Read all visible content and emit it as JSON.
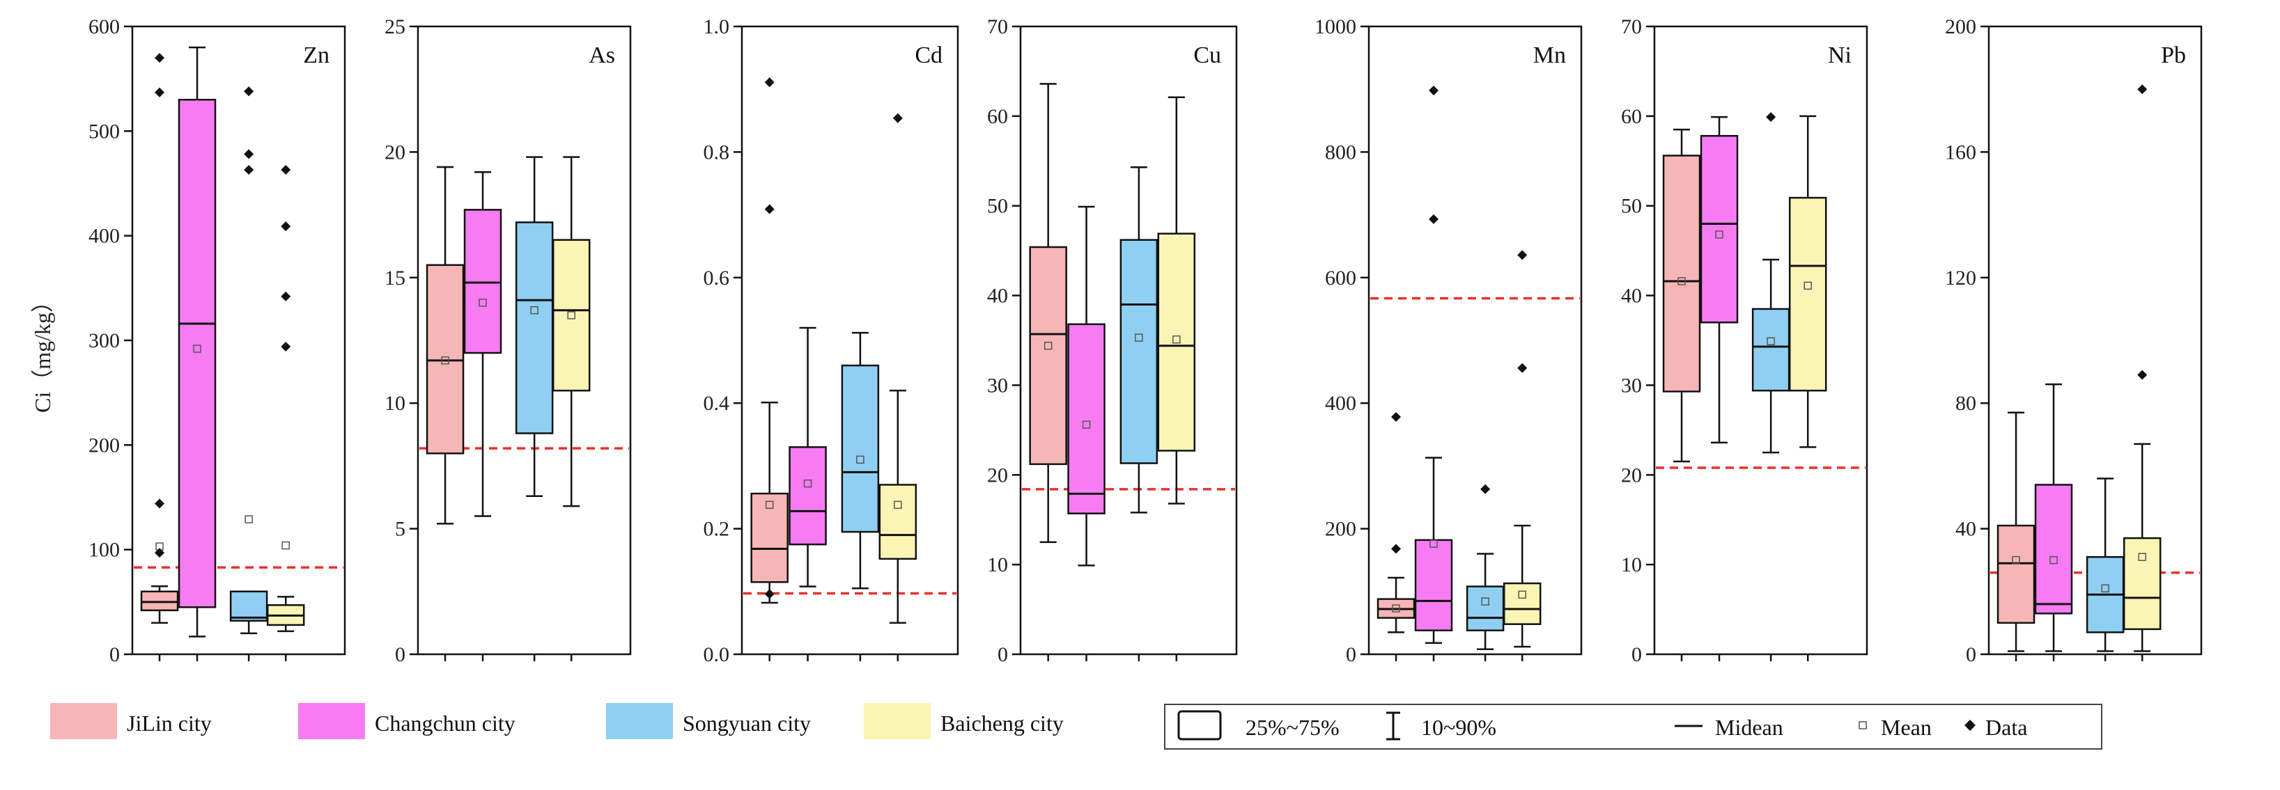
{
  "ylabel": "Ci（mg/kg）",
  "colors": {
    "JiLin city": "#f7b6b6",
    "Changchun city": "#f77cf3",
    "Songyuan city": "#8fd0f2",
    "Baicheng city": "#fbf5b5",
    "reference_line": "#e8322b"
  },
  "legend": {
    "cities": [
      "JiLin city",
      "Changchun city",
      "Songyuan city",
      "Baicheng city"
    ],
    "box_label": "25%~75%",
    "whisker_label": "10~90%",
    "median_label": "Midean",
    "mean_label": "Mean",
    "data_label": "Data"
  },
  "chart_data": [
    {
      "type": "box",
      "title": "Zn",
      "ylim": [
        0,
        600
      ],
      "ticks": [
        0,
        100,
        200,
        300,
        400,
        500,
        600
      ],
      "reference_line": 83,
      "boxes": [
        {
          "city": "JiLin city",
          "q1": 42,
          "median": 50,
          "q3": 60,
          "low": 30,
          "high": 65,
          "mean": 103,
          "outliers": [
            570,
            537,
            144,
            97
          ]
        },
        {
          "city": "Changchun city",
          "q1": 45,
          "median": 316,
          "q3": 530,
          "low": 17,
          "high": 580,
          "mean": 292,
          "outliers": []
        },
        {
          "city": "Songyuan city",
          "q1": 32,
          "median": 35,
          "q3": 60,
          "low": 20,
          "high": 60,
          "mean": 129,
          "outliers": [
            538,
            478,
            463
          ]
        },
        {
          "city": "Baicheng city",
          "q1": 28,
          "median": 37,
          "q3": 47,
          "low": 22,
          "high": 55,
          "mean": 104,
          "outliers": [
            463,
            409,
            342,
            294
          ]
        }
      ]
    },
    {
      "type": "box",
      "title": "As",
      "ylim": [
        0,
        25
      ],
      "ticks": [
        0,
        5,
        10,
        15,
        20,
        25
      ],
      "reference_line": 8.2,
      "boxes": [
        {
          "city": "JiLin city",
          "q1": 8.0,
          "median": 11.7,
          "q3": 15.5,
          "low": 5.2,
          "high": 19.4,
          "mean": 11.7,
          "outliers": []
        },
        {
          "city": "Changchun city",
          "q1": 12.0,
          "median": 14.8,
          "q3": 17.7,
          "low": 5.5,
          "high": 19.2,
          "mean": 14.0,
          "outliers": []
        },
        {
          "city": "Songyuan city",
          "q1": 8.8,
          "median": 14.1,
          "q3": 17.2,
          "low": 6.3,
          "high": 19.8,
          "mean": 13.7,
          "outliers": []
        },
        {
          "city": "Baicheng city",
          "q1": 10.5,
          "median": 13.7,
          "q3": 16.5,
          "low": 5.9,
          "high": 19.8,
          "mean": 13.5,
          "outliers": []
        }
      ]
    },
    {
      "type": "box",
      "title": "Cd",
      "ylim": [
        0,
        1.0
      ],
      "ticks": [
        0.0,
        0.2,
        0.4,
        0.6,
        0.8,
        1.0
      ],
      "tick_decimals": 1,
      "reference_line": 0.097,
      "boxes": [
        {
          "city": "JiLin city",
          "q1": 0.115,
          "median": 0.168,
          "q3": 0.256,
          "low": 0.082,
          "high": 0.401,
          "mean": 0.238,
          "outliers": [
            0.911,
            0.709,
            0.096
          ]
        },
        {
          "city": "Changchun city",
          "q1": 0.175,
          "median": 0.228,
          "q3": 0.33,
          "low": 0.108,
          "high": 0.52,
          "mean": 0.272,
          "outliers": []
        },
        {
          "city": "Songyuan city",
          "q1": 0.195,
          "median": 0.29,
          "q3": 0.46,
          "low": 0.105,
          "high": 0.512,
          "mean": 0.31,
          "outliers": []
        },
        {
          "city": "Baicheng city",
          "q1": 0.152,
          "median": 0.19,
          "q3": 0.27,
          "low": 0.05,
          "high": 0.42,
          "mean": 0.238,
          "outliers": [
            0.854
          ]
        }
      ]
    },
    {
      "type": "box",
      "title": "Cu",
      "ylim": [
        0,
        70
      ],
      "ticks": [
        0,
        10,
        20,
        30,
        40,
        50,
        60,
        70
      ],
      "reference_line": 18.4,
      "boxes": [
        {
          "city": "JiLin city",
          "q1": 21.2,
          "median": 35.7,
          "q3": 45.4,
          "low": 12.5,
          "high": 63.6,
          "mean": 34.4,
          "outliers": []
        },
        {
          "city": "Changchun city",
          "q1": 15.7,
          "median": 17.9,
          "q3": 36.8,
          "low": 9.9,
          "high": 49.9,
          "mean": 25.6,
          "outliers": []
        },
        {
          "city": "Songyuan city",
          "q1": 21.3,
          "median": 39.0,
          "q3": 46.2,
          "low": 15.8,
          "high": 54.3,
          "mean": 35.3,
          "outliers": []
        },
        {
          "city": "Baicheng city",
          "q1": 22.7,
          "median": 34.4,
          "q3": 46.9,
          "low": 16.8,
          "high": 62.1,
          "mean": 35.1,
          "outliers": []
        }
      ]
    },
    {
      "type": "box",
      "title": "Mn",
      "ylim": [
        0,
        1000
      ],
      "ticks": [
        0,
        200,
        400,
        600,
        800,
        1000
      ],
      "reference_line": 567,
      "boxes": [
        {
          "city": "JiLin city",
          "q1": 58,
          "median": 72,
          "q3": 88,
          "low": 35,
          "high": 122,
          "mean": 73,
          "outliers": [
            378,
            168
          ]
        },
        {
          "city": "Changchun city",
          "q1": 38,
          "median": 85,
          "q3": 182,
          "low": 18,
          "high": 313,
          "mean": 176,
          "outliers": [
            898,
            693
          ]
        },
        {
          "city": "Songyuan city",
          "q1": 38,
          "median": 58,
          "q3": 108,
          "low": 8,
          "high": 160,
          "mean": 84,
          "outliers": [
            263
          ]
        },
        {
          "city": "Baicheng city",
          "q1": 48,
          "median": 72,
          "q3": 113,
          "low": 12,
          "high": 205,
          "mean": 95,
          "outliers": [
            636,
            456
          ]
        }
      ]
    },
    {
      "type": "box",
      "title": "Ni",
      "ylim": [
        0,
        70
      ],
      "ticks": [
        0,
        10,
        20,
        30,
        40,
        50,
        60,
        70
      ],
      "reference_line": 20.8,
      "boxes": [
        {
          "city": "JiLin city",
          "q1": 29.3,
          "median": 41.6,
          "q3": 55.6,
          "low": 21.5,
          "high": 58.5,
          "mean": 41.6,
          "outliers": []
        },
        {
          "city": "Changchun city",
          "q1": 37.0,
          "median": 48.0,
          "q3": 57.8,
          "low": 23.6,
          "high": 59.9,
          "mean": 46.8,
          "outliers": []
        },
        {
          "city": "Songyuan city",
          "q1": 29.4,
          "median": 34.3,
          "q3": 38.5,
          "low": 22.5,
          "high": 44.0,
          "mean": 34.9,
          "outliers": [
            59.9
          ]
        },
        {
          "city": "Baicheng city",
          "q1": 29.4,
          "median": 43.3,
          "q3": 50.9,
          "low": 23.1,
          "high": 60.0,
          "mean": 41.1,
          "outliers": []
        }
      ]
    },
    {
      "type": "box",
      "title": "Pb",
      "ylim": [
        0,
        200
      ],
      "ticks": [
        0,
        40,
        80,
        120,
        160,
        200
      ],
      "reference_line": 26,
      "boxes": [
        {
          "city": "JiLin city",
          "q1": 10,
          "median": 29,
          "q3": 41,
          "low": 1,
          "high": 77,
          "mean": 30,
          "outliers": []
        },
        {
          "city": "Changchun city",
          "q1": 13,
          "median": 16,
          "q3": 54,
          "low": 1,
          "high": 86,
          "mean": 30,
          "outliers": []
        },
        {
          "city": "Songyuan city",
          "q1": 7,
          "median": 19,
          "q3": 31,
          "low": 1,
          "high": 56,
          "mean": 21,
          "outliers": []
        },
        {
          "city": "Baicheng city",
          "q1": 8,
          "median": 18,
          "q3": 37,
          "low": 1,
          "high": 67,
          "mean": 31,
          "outliers": [
            180,
            89
          ]
        }
      ]
    }
  ]
}
